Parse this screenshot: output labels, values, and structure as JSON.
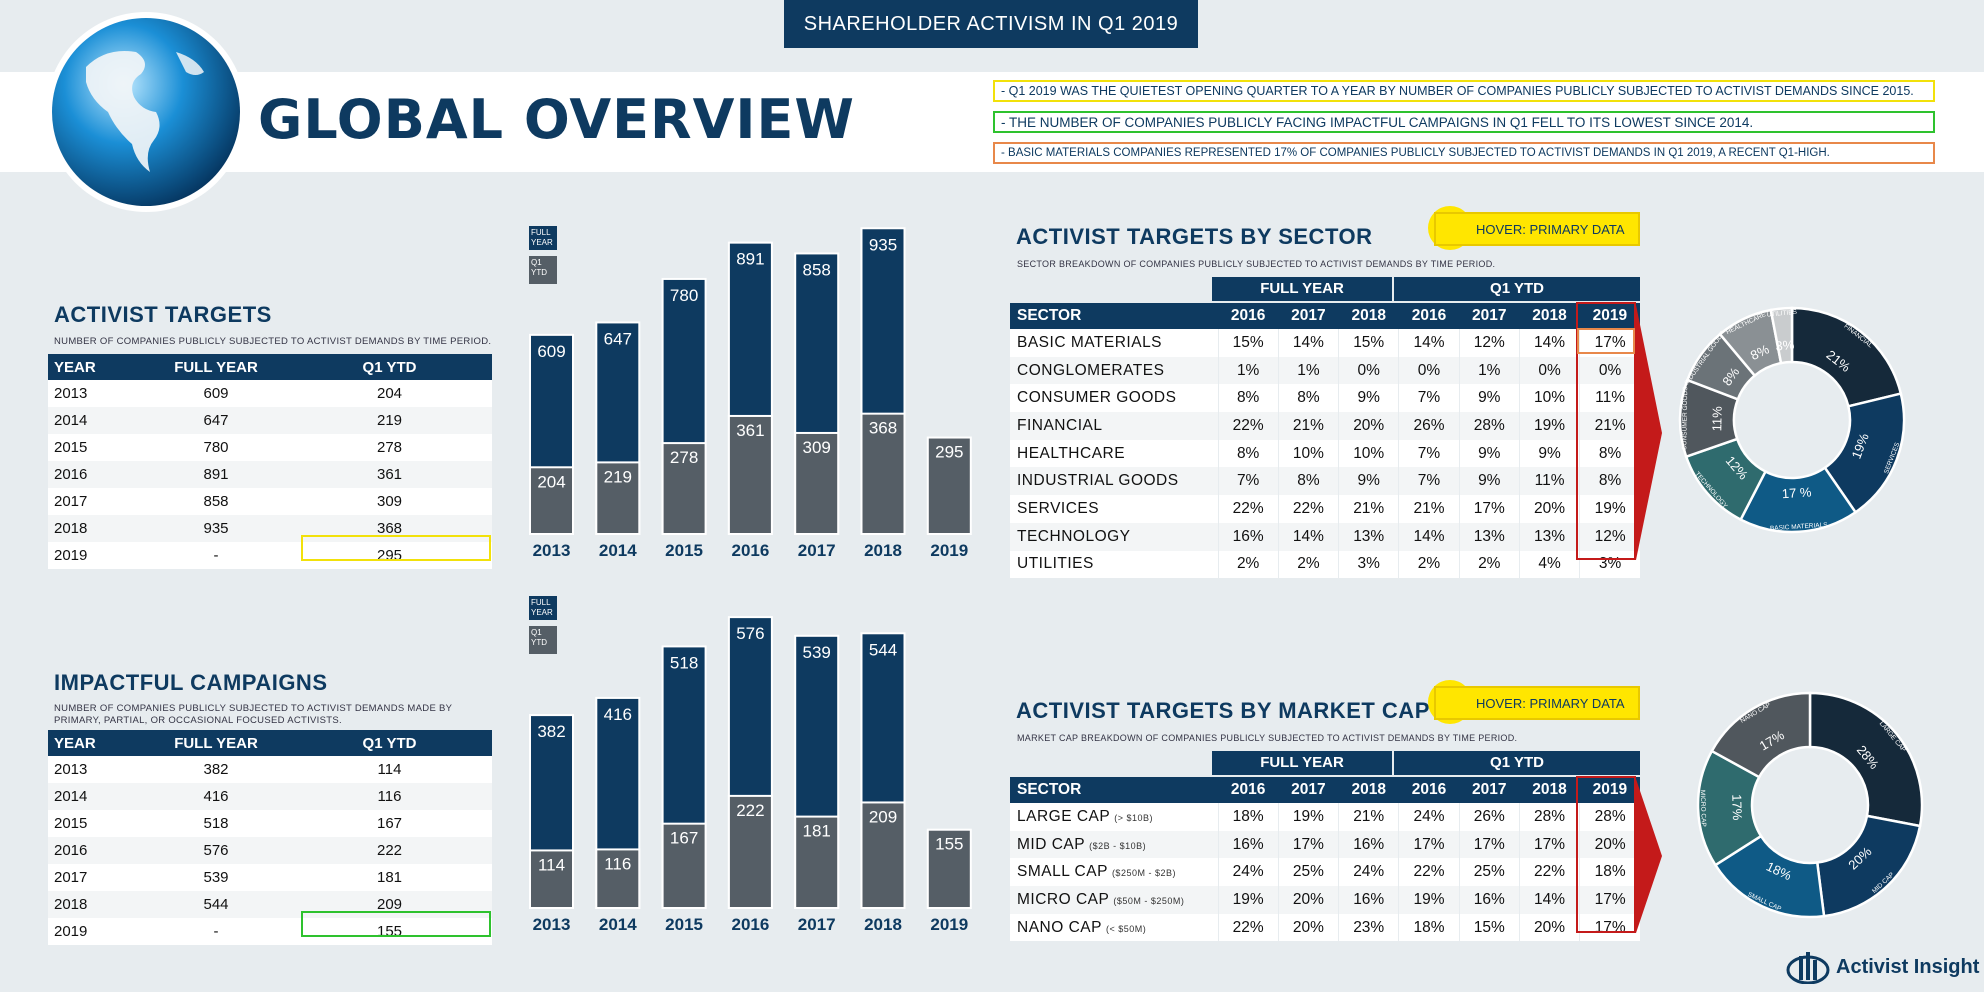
{
  "banner": "SHAREHOLDER ACTIVISM IN Q1 2019",
  "page_title": "GLOBAL OVERVIEW",
  "bullets": [
    {
      "text": "- Q1 2019 WAS THE QUIETEST OPENING QUARTER TO A YEAR BY NUMBER OF COMPANIES PUBLICLY SUBJECTED TO ACTIVIST DEMANDS SINCE 2015.",
      "color": "#f2e10a"
    },
    {
      "text": "- THE NUMBER OF COMPANIES PUBLICLY FACING IMPACTFUL CAMPAIGNS IN Q1 FELL TO ITS LOWEST SINCE 2014.",
      "color": "#2ec22e"
    },
    {
      "text": "- BASIC MATERIALS COMPANIES REPRESENTED 17% OF COMPANIES PUBLICLY SUBJECTED TO ACTIVIST DEMANDS IN Q1 2019, A RECENT Q1-HIGH.",
      "color": "#e8884a"
    }
  ],
  "targets": {
    "title": "ACTIVIST TARGETS",
    "subtitle": "NUMBER OF COMPANIES PUBLICLY SUBJECTED TO ACTIVIST DEMANDS BY TIME PERIOD.",
    "headers": [
      "YEAR",
      "FULL YEAR",
      "Q1 YTD"
    ],
    "rows": [
      [
        "2013",
        "609",
        "204"
      ],
      [
        "2014",
        "647",
        "219"
      ],
      [
        "2015",
        "780",
        "278"
      ],
      [
        "2016",
        "891",
        "361"
      ],
      [
        "2017",
        "858",
        "309"
      ],
      [
        "2018",
        "935",
        "368"
      ],
      [
        "2019",
        "-",
        "295"
      ]
    ]
  },
  "impactful": {
    "title": "IMPACTFUL CAMPAIGNS",
    "subtitle_1": "NUMBER OF COMPANIES PUBLICLY SUBJECTED TO ACTIVIST DEMANDS MADE BY",
    "subtitle_2": "PRIMARY, PARTIAL, OR OCCASIONAL FOCUSED ACTIVISTS.",
    "headers": [
      "YEAR",
      "FULL YEAR",
      "Q1 YTD"
    ],
    "rows": [
      [
        "2013",
        "382",
        "114"
      ],
      [
        "2014",
        "416",
        "116"
      ],
      [
        "2015",
        "518",
        "167"
      ],
      [
        "2016",
        "576",
        "222"
      ],
      [
        "2017",
        "539",
        "181"
      ],
      [
        "2018",
        "544",
        "209"
      ],
      [
        "2019",
        "-",
        "155"
      ]
    ]
  },
  "legend": {
    "full_year": "FULL YEAR",
    "q1_ytd": "Q1 YTD"
  },
  "hover_label": "HOVER: PRIMARY DATA",
  "sector": {
    "title": "ACTIVIST TARGETS BY SECTOR",
    "subtitle": "SECTOR BREAKDOWN OF COMPANIES PUBLICLY SUBJECTED TO ACTIVIST DEMANDS BY TIME PERIOD.",
    "group_full": "FULL YEAR",
    "group_q1": "Q1 YTD",
    "headers": [
      "SECTOR",
      "2016",
      "2017",
      "2018",
      "2016",
      "2017",
      "2018",
      "2019"
    ],
    "rows": [
      [
        "BASIC MATERIALS",
        "15%",
        "14%",
        "15%",
        "14%",
        "12%",
        "14%",
        "17%"
      ],
      [
        "CONGLOMERATES",
        "1%",
        "1%",
        "0%",
        "0%",
        "1%",
        "0%",
        "0%"
      ],
      [
        "CONSUMER GOODS",
        "8%",
        "8%",
        "9%",
        "7%",
        "9%",
        "10%",
        "11%"
      ],
      [
        "FINANCIAL",
        "22%",
        "21%",
        "20%",
        "26%",
        "28%",
        "19%",
        "21%"
      ],
      [
        "HEALTHCARE",
        "8%",
        "10%",
        "10%",
        "7%",
        "9%",
        "9%",
        "8%"
      ],
      [
        "INDUSTRIAL GOODS",
        "7%",
        "8%",
        "9%",
        "7%",
        "9%",
        "11%",
        "8%"
      ],
      [
        "SERVICES",
        "22%",
        "22%",
        "21%",
        "21%",
        "17%",
        "20%",
        "19%"
      ],
      [
        "TECHNOLOGY",
        "16%",
        "14%",
        "13%",
        "14%",
        "13%",
        "13%",
        "12%"
      ],
      [
        "UTILITIES",
        "2%",
        "2%",
        "3%",
        "2%",
        "2%",
        "4%",
        "3%"
      ]
    ]
  },
  "marketcap": {
    "title": "ACTIVIST TARGETS BY MARKET CAP",
    "subtitle": "MARKET CAP BREAKDOWN OF COMPANIES PUBLICLY SUBJECTED TO ACTIVIST DEMANDS BY TIME PERIOD.",
    "group_full": "FULL YEAR",
    "group_q1": "Q1 YTD",
    "headers": [
      "SECTOR",
      "2016",
      "2017",
      "2018",
      "2016",
      "2017",
      "2018",
      "2019"
    ],
    "rows": [
      [
        "LARGE CAP",
        "(> $10B)",
        "18%",
        "19%",
        "21%",
        "24%",
        "26%",
        "28%",
        "28%"
      ],
      [
        "MID CAP",
        "($2B - $10B)",
        "16%",
        "17%",
        "16%",
        "17%",
        "17%",
        "17%",
        "20%"
      ],
      [
        "SMALL CAP",
        "($250M - $2B)",
        "24%",
        "25%",
        "24%",
        "22%",
        "25%",
        "22%",
        "18%"
      ],
      [
        "MICRO CAP",
        "($50M - $250M)",
        "19%",
        "20%",
        "16%",
        "19%",
        "16%",
        "14%",
        "17%"
      ],
      [
        "NANO CAP",
        "(< $50M)",
        "22%",
        "20%",
        "23%",
        "18%",
        "15%",
        "20%",
        "17%"
      ]
    ]
  },
  "logo_text": "Activist Insight",
  "chart_data": [
    {
      "type": "bar",
      "categories": [
        "2013",
        "2014",
        "2015",
        "2016",
        "2017",
        "2018",
        "2019"
      ],
      "series": [
        {
          "name": "FULL YEAR",
          "values": [
            609,
            647,
            780,
            891,
            858,
            935,
            null
          ]
        },
        {
          "name": "Q1 YTD",
          "values": [
            204,
            219,
            278,
            361,
            309,
            368,
            295
          ]
        }
      ],
      "colors": {
        "full": "#0e3a60",
        "q1": "#555e66"
      }
    },
    {
      "type": "bar",
      "categories": [
        "2013",
        "2014",
        "2015",
        "2016",
        "2017",
        "2018",
        "2019"
      ],
      "series": [
        {
          "name": "FULL YEAR",
          "values": [
            382,
            416,
            518,
            576,
            539,
            544,
            null
          ]
        },
        {
          "name": "Q1 YTD",
          "values": [
            114,
            116,
            167,
            222,
            181,
            209,
            155
          ]
        }
      ],
      "colors": {
        "full": "#0e3a60",
        "q1": "#555e66"
      }
    },
    {
      "type": "pie",
      "labels": [
        "FINANCIAL",
        "SERVICES",
        "BASIC MATERIALS",
        "TECHNOLOGY",
        "CONSUMER GOODS",
        "INDUSTRIAL GOODS",
        "HEALTHCARE",
        "UTILITIES"
      ],
      "values": [
        21,
        19,
        17,
        12,
        11,
        8,
        8,
        3
      ],
      "slice_labels": [
        "21%",
        "19%",
        "17 %",
        "12%",
        "11%",
        "8%",
        "8%",
        "3%"
      ],
      "colors": [
        "#15293a",
        "#0e3a60",
        "#0f5a86",
        "#2f6b6e",
        "#50575d",
        "#6b7378",
        "#8a9094",
        "#c9ccce"
      ]
    },
    {
      "type": "pie",
      "labels": [
        "LARGE CAP",
        "MID CAP",
        "SMALL CAP",
        "MICRO CAP",
        "NANO CAP"
      ],
      "values": [
        28,
        20,
        18,
        17,
        17
      ],
      "slice_labels": [
        "28%",
        "20%",
        "18%",
        "17%",
        "17%"
      ],
      "colors": [
        "#15293a",
        "#0e3a60",
        "#0f5a86",
        "#2f6b6e",
        "#50575d"
      ]
    }
  ]
}
